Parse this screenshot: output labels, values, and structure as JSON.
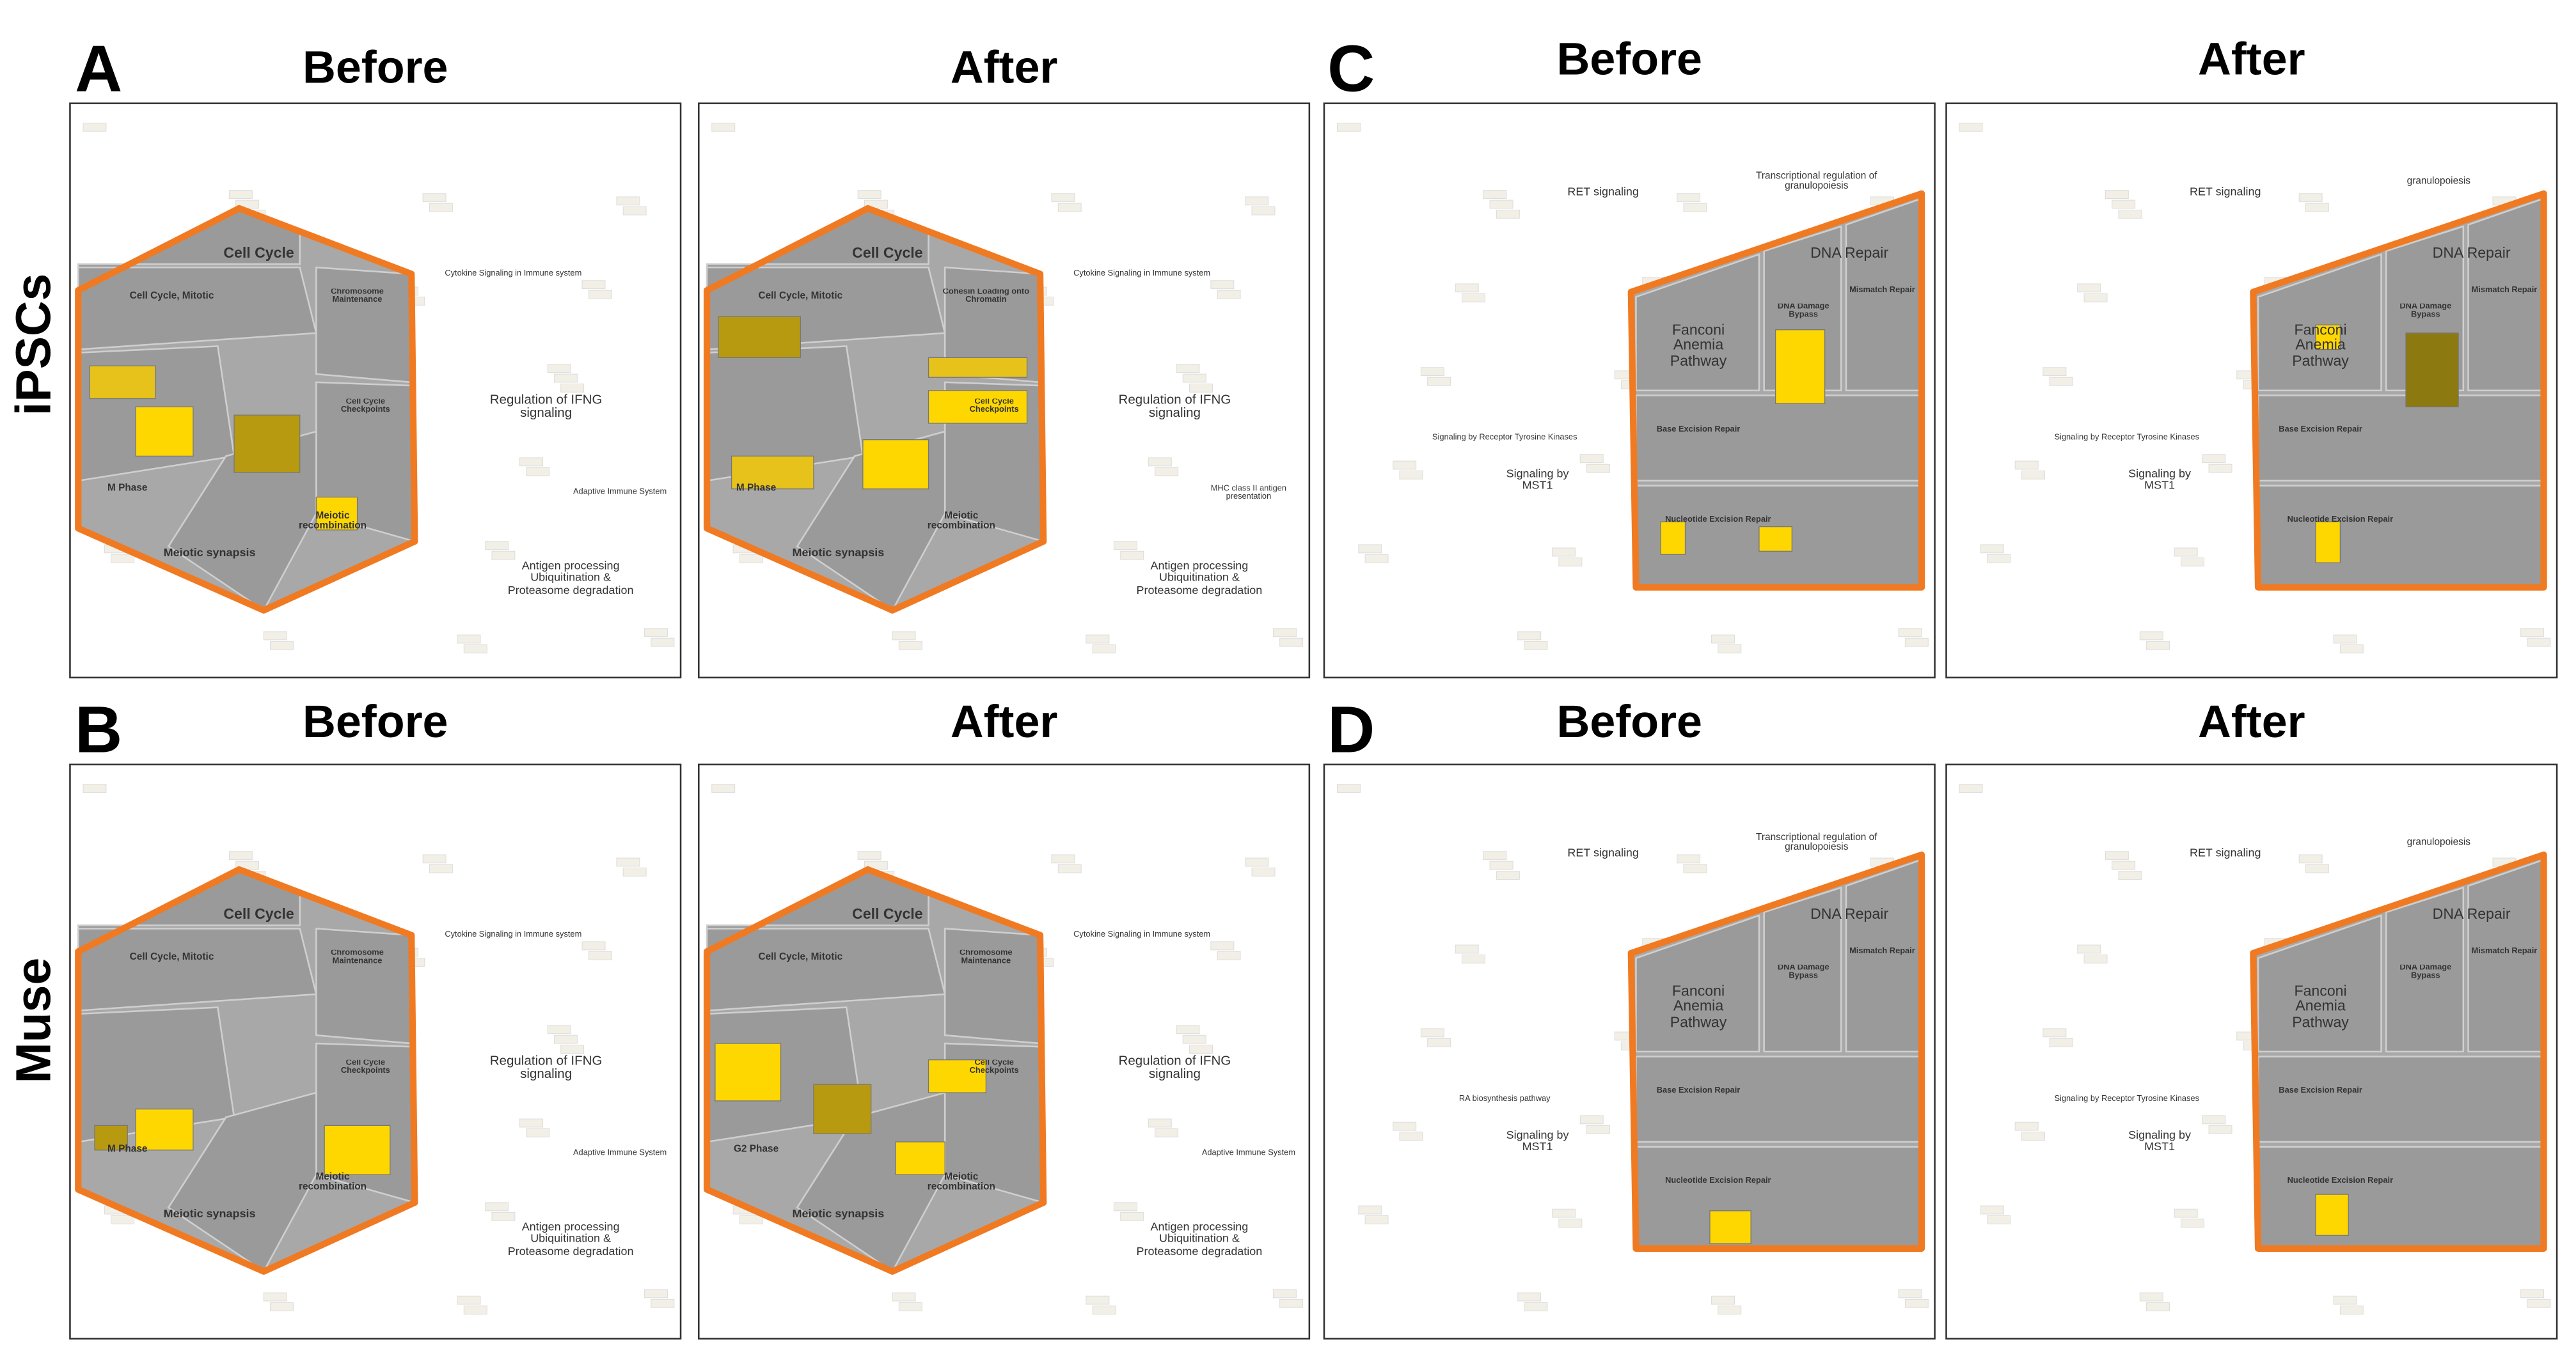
{
  "row_labels": [
    "iPSCs",
    "Muse"
  ],
  "panels": [
    {
      "letter": "A",
      "maps": [
        {
          "label": "Before",
          "texts": [
            "Cell Cycle",
            "Cell Cycle, Mitotic",
            "Chromosome Maintenance",
            "Cell Cycle Checkpoints",
            "M Phase",
            "Meiotic synapsis",
            "Meiotic recombination",
            "Regulation of IFNG signaling",
            "Antigen processing Ubiquitination & Proteasome degradation",
            "Cytokine Signaling in Immune system",
            "Adaptive Immune System"
          ]
        },
        {
          "label": "After",
          "texts": [
            "Cell Cycle",
            "Cell Cycle, Mitotic",
            "Cohesin Loading onto Chromatin",
            "Cell Cycle Checkpoints",
            "M Phase",
            "Meiotic synapsis",
            "Meiotic recombination",
            "Regulation of IFNG signaling",
            "Antigen processing Ubiquitination & Proteasome degradation",
            "Cytokine Signaling in Immune system",
            "MHC class II antigen presentation"
          ]
        }
      ]
    },
    {
      "letter": "B",
      "maps": [
        {
          "label": "Before",
          "texts": [
            "Cell Cycle",
            "Cell Cycle, Mitotic",
            "Chromosome Maintenance",
            "Cell Cycle Checkpoints",
            "M Phase",
            "Meiotic synapsis",
            "Meiotic recombination",
            "Regulation of IFNG signaling",
            "Antigen processing Ubiquitination & Proteasome degradation",
            "Cytokine Signaling in Immune system",
            "Adaptive Immune System"
          ]
        },
        {
          "label": "After",
          "texts": [
            "Cell Cycle",
            "Cell Cycle, Mitotic",
            "Chromosome Maintenance",
            "Cell Cycle Checkpoints",
            "G2 Phase",
            "Meiotic synapsis",
            "Meiotic recombination",
            "Regulation of IFNG signaling",
            "Antigen processing Ubiquitination & Proteasome degradation",
            "Cytokine Signaling in Immune system",
            "Adaptive Immune System"
          ]
        }
      ]
    },
    {
      "letter": "C",
      "maps": [
        {
          "label": "Before",
          "texts": [
            "DNA Repair",
            "Fanconi Anemia Pathway",
            "DNA Damage Bypass",
            "Mismatch Repair",
            "Base Excision Repair",
            "Nucleotide Excision Repair",
            "RET signaling",
            "Signaling by MST1",
            "Transcriptional regulation of granulopoiesis",
            "Signaling by Receptor Tyrosine Kinases"
          ]
        },
        {
          "label": "After",
          "texts": [
            "DNA Repair",
            "Fanconi Anemia Pathway",
            "DNA Damage Bypass",
            "Mismatch Repair",
            "Base Excision Repair",
            "Nucleotide Excision Repair",
            "RET signaling",
            "Signaling by MST1",
            "granulopoiesis",
            "Signaling by Receptor Tyrosine Kinases"
          ]
        }
      ]
    },
    {
      "letter": "D",
      "maps": [
        {
          "label": "Before",
          "texts": [
            "DNA Repair",
            "Fanconi Anemia Pathway",
            "DNA Damage Bypass",
            "Mismatch Repair",
            "Base Excision Repair",
            "Nucleotide Excision Repair",
            "RET signaling",
            "Signaling by MST1",
            "Transcriptional regulation of granulopoiesis",
            "RA biosynthesis pathway"
          ]
        },
        {
          "label": "After",
          "texts": [
            "DNA Repair",
            "Fanconi Anemia Pathway",
            "DNA Damage Bypass",
            "Mismatch Repair",
            "Base Excision Repair",
            "Nucleotide Excision Repair",
            "RET signaling",
            "Signaling by MST1",
            "granulopoiesis",
            "Signaling by Receptor Tyrosine Kinases"
          ]
        }
      ]
    }
  ]
}
